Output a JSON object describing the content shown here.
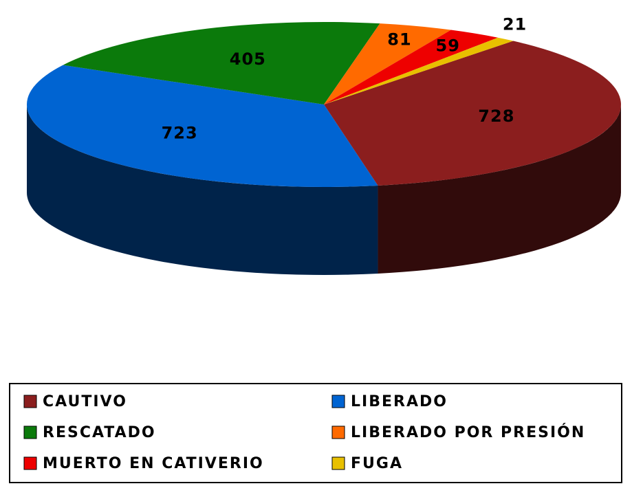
{
  "chart_data": {
    "type": "pie",
    "categories": [
      "CAUTIVO",
      "LIBERADO",
      "RESCATADO",
      "LIBERADO POR PRESIÓN",
      "MUERTO EN CATIVERIO",
      "FUGA"
    ],
    "values": [
      728,
      723,
      405,
      81,
      59,
      21
    ],
    "colors": [
      "#8b1e1e",
      "#0064d2",
      "#0b7a0b",
      "#ff6a00",
      "#ee0000",
      "#e8c000"
    ]
  }
}
